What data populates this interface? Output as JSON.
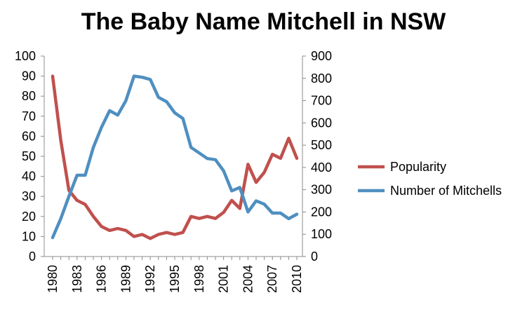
{
  "chart_data": {
    "type": "line",
    "title": "The Baby Name Mitchell in NSW",
    "legend_position": "right",
    "grid": false,
    "x": [
      1980,
      1981,
      1982,
      1983,
      1984,
      1985,
      1986,
      1987,
      1988,
      1989,
      1990,
      1991,
      1992,
      1993,
      1994,
      1995,
      1996,
      1997,
      1998,
      1999,
      2000,
      2001,
      2002,
      2003,
      2004,
      2005,
      2006,
      2007,
      2008,
      2009,
      2010
    ],
    "x_ticks": [
      "1980",
      "1983",
      "1986",
      "1989",
      "1992",
      "1995",
      "1998",
      "2001",
      "2004",
      "2007",
      "2010"
    ],
    "y_left_ticks": [
      "0",
      "10",
      "20",
      "30",
      "40",
      "50",
      "60",
      "70",
      "80",
      "90",
      "100"
    ],
    "y_right_ticks": [
      "0",
      "100",
      "200",
      "300",
      "400",
      "500",
      "600",
      "700",
      "800",
      "900"
    ],
    "ylim_left": [
      0,
      100
    ],
    "ylim_right": [
      0,
      900
    ],
    "series": [
      {
        "name": "Popularity",
        "axis": "left",
        "color": "#c0504d",
        "values": [
          90,
          58,
          33,
          28,
          26,
          20,
          15,
          13,
          14,
          13,
          10,
          11,
          9,
          11,
          12,
          11,
          12,
          20,
          19,
          20,
          19,
          22,
          28,
          24,
          46,
          37,
          42,
          51,
          49,
          59,
          49
        ]
      },
      {
        "name": "Number of Mitchells",
        "axis": "right",
        "color": "#4f8fc0",
        "values": [
          85,
          170,
          270,
          365,
          365,
          490,
          580,
          655,
          635,
          700,
          810,
          805,
          795,
          715,
          695,
          645,
          620,
          490,
          465,
          440,
          435,
          385,
          295,
          310,
          200,
          250,
          235,
          195,
          195,
          170,
          190
        ]
      }
    ]
  }
}
